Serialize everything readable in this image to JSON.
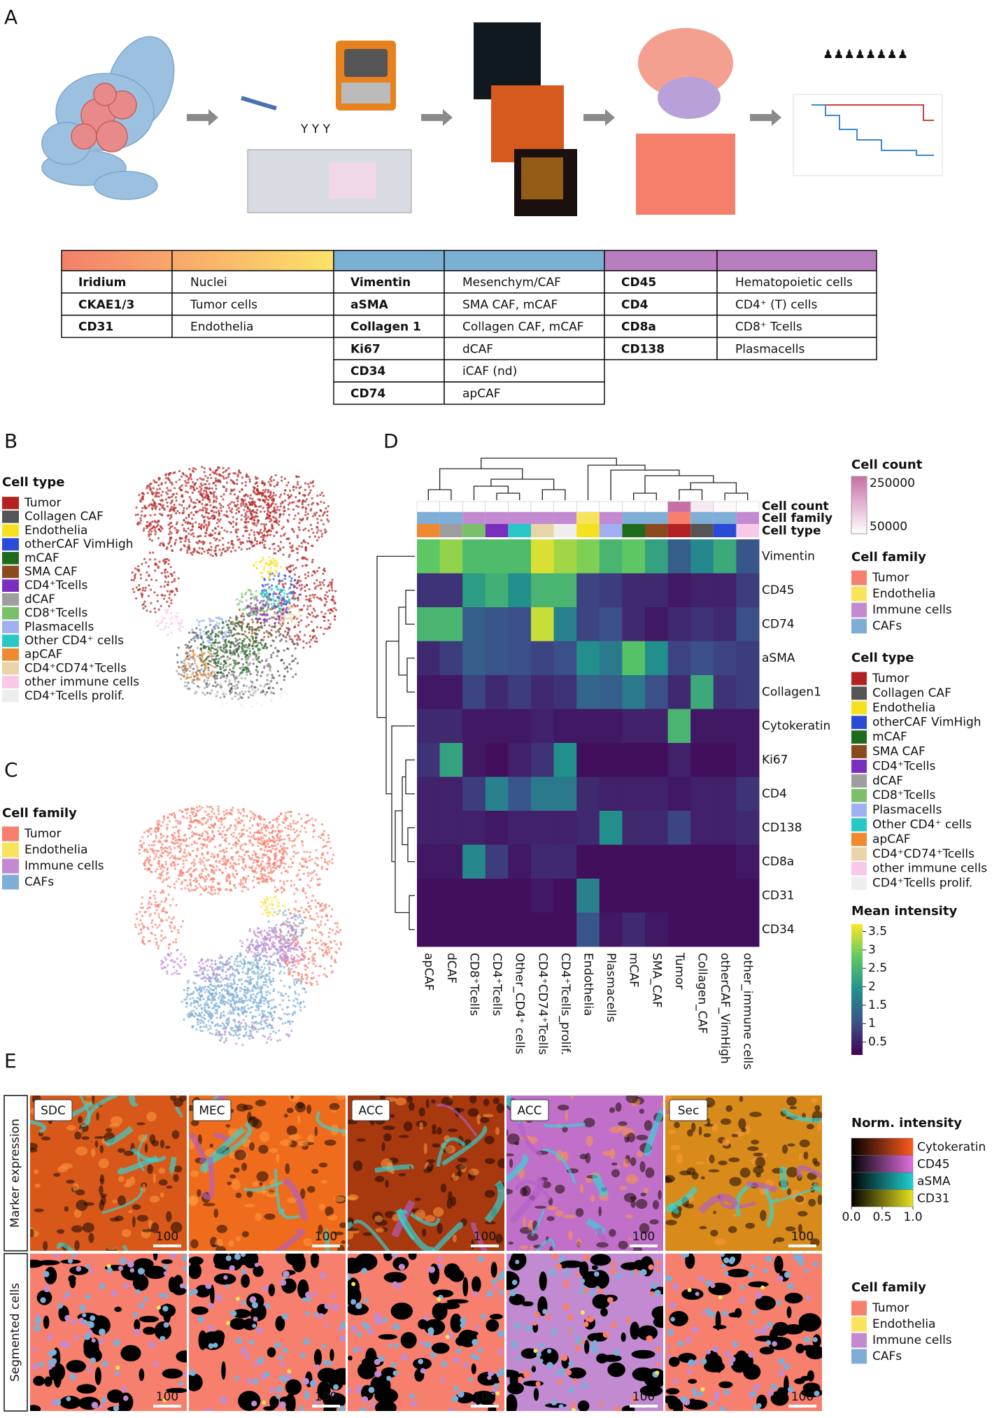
{
  "panel_labels": [
    "A",
    "B",
    "C",
    "D",
    "E"
  ],
  "table": {
    "groups": [
      {
        "color": [
          "#f47f6b",
          "#fde26a"
        ],
        "rows": [
          [
            "Iridium",
            "Nuclei"
          ],
          [
            "CKAE1/3",
            "Tumor cells"
          ],
          [
            "CD31",
            "Endothelia"
          ]
        ]
      },
      {
        "color": [
          "#7bafd4"
        ],
        "rows": [
          [
            "Vimentin",
            "Mesenchym/CAF"
          ],
          [
            "aSMA",
            "SMA CAF, mCAF"
          ],
          [
            "Collagen 1",
            "Collagen CAF, mCAF"
          ],
          [
            "Ki67",
            "dCAF"
          ],
          [
            "CD34",
            "iCAF (nd)"
          ],
          [
            "CD74",
            "apCAF"
          ]
        ]
      },
      {
        "color": [
          "#b87ec0"
        ],
        "rows": [
          [
            "CD45",
            "Hematopoietic cells"
          ],
          [
            "CD4",
            "CD4⁺ (T) cells"
          ],
          [
            "CD8a",
            "CD8⁺ Tcells"
          ],
          [
            "CD138",
            "Plasmacells"
          ]
        ]
      }
    ]
  },
  "tsne_celltype": {
    "title": "Cell type",
    "items": [
      {
        "name": "Tumor",
        "color": "#b22222"
      },
      {
        "name": "Collagen CAF",
        "color": "#555555"
      },
      {
        "name": "Endothelia",
        "color": "#f5e11e"
      },
      {
        "name": "otherCAF VimHigh",
        "color": "#2a4ad8"
      },
      {
        "name": "mCAF",
        "color": "#1e6b1e"
      },
      {
        "name": "SMA CAF",
        "color": "#8b4a1e"
      },
      {
        "name": "CD4⁺Tcells",
        "color": "#7a2ec0"
      },
      {
        "name": "dCAF",
        "color": "#9e9e9e"
      },
      {
        "name": "CD8⁺Tcells",
        "color": "#7ac06a"
      },
      {
        "name": "Plasmacells",
        "color": "#a0b0f0"
      },
      {
        "name": "Other CD4⁺ cells",
        "color": "#28c8c8"
      },
      {
        "name": "apCAF",
        "color": "#f08a30"
      },
      {
        "name": "CD4⁺CD74⁺Tcells",
        "color": "#e8d4a8"
      },
      {
        "name": "other immune cells",
        "color": "#f8c8e8"
      },
      {
        "name": "CD4⁺Tcells prolif.",
        "color": "#eeeeee"
      }
    ]
  },
  "tsne_family": {
    "title": "Cell family",
    "items": [
      {
        "name": "Tumor",
        "color": "#f77f6e"
      },
      {
        "name": "Endothelia",
        "color": "#f8e45a"
      },
      {
        "name": "Immune cells",
        "color": "#c28bd1"
      },
      {
        "name": "CAFs",
        "color": "#7eaed6"
      }
    ]
  },
  "chart_data": {
    "type": "heatmap",
    "rows": [
      "Vimentin",
      "CD45",
      "CD74",
      "aSMA",
      "Collagen1",
      "Cytokeratin",
      "Ki67",
      "CD4",
      "CD138",
      "CD8a",
      "CD31",
      "CD34"
    ],
    "columns": [
      "apCAF",
      "dCAF",
      "CD8⁺Tcells",
      "CD4⁺Tcells",
      "Other_CD4⁺ cells",
      "CD4⁺CD74⁺Tcells",
      "CD4⁺Tcells_prolif.",
      "Endothelia",
      "Plasmacells",
      "mCAF",
      "SMA_CAF",
      "Tumor",
      "Collagen_CAF",
      "otherCAF_VimHigh",
      "other_immune cells"
    ],
    "values": [
      [
        2.8,
        3.1,
        2.6,
        2.6,
        2.6,
        3.5,
        3.2,
        3.0,
        2.5,
        2.8,
        2.2,
        1.2,
        1.8,
        2.3,
        1.1
      ],
      [
        0.7,
        0.7,
        2.1,
        2.4,
        1.9,
        2.5,
        2.5,
        0.9,
        0.8,
        0.6,
        0.6,
        0.4,
        0.5,
        0.5,
        0.8
      ],
      [
        2.5,
        2.5,
        1.2,
        1.1,
        1.0,
        3.4,
        1.7,
        0.9,
        1.0,
        0.6,
        0.4,
        0.6,
        0.7,
        0.6,
        1.0
      ],
      [
        0.6,
        0.8,
        1.2,
        1.1,
        1.0,
        0.9,
        1.0,
        1.9,
        1.6,
        2.7,
        1.9,
        0.9,
        1.0,
        0.9,
        0.8
      ],
      [
        0.4,
        0.4,
        0.9,
        0.6,
        0.8,
        0.6,
        0.7,
        1.3,
        1.2,
        1.6,
        1.0,
        0.6,
        2.3,
        0.7,
        0.8
      ],
      [
        0.6,
        0.6,
        0.4,
        0.4,
        0.4,
        0.5,
        0.4,
        0.4,
        0.4,
        0.5,
        0.5,
        2.5,
        0.4,
        0.4,
        0.4
      ],
      [
        0.7,
        2.2,
        0.4,
        0.3,
        0.5,
        0.7,
        1.9,
        0.3,
        0.3,
        0.3,
        0.3,
        0.5,
        0.3,
        0.3,
        0.4
      ],
      [
        0.5,
        0.5,
        0.8,
        1.7,
        1.1,
        1.6,
        1.6,
        0.6,
        0.5,
        0.5,
        0.5,
        0.4,
        0.5,
        0.5,
        0.7
      ],
      [
        0.5,
        0.5,
        0.5,
        0.4,
        0.5,
        0.5,
        0.5,
        0.6,
        1.9,
        0.6,
        0.6,
        0.9,
        0.5,
        0.5,
        0.6
      ],
      [
        0.4,
        0.4,
        1.8,
        0.8,
        0.4,
        0.6,
        0.6,
        0.3,
        0.3,
        0.3,
        0.3,
        0.3,
        0.3,
        0.3,
        0.4
      ],
      [
        0.3,
        0.3,
        0.3,
        0.3,
        0.3,
        0.4,
        0.3,
        1.7,
        0.3,
        0.3,
        0.3,
        0.3,
        0.3,
        0.3,
        0.3
      ],
      [
        0.3,
        0.3,
        0.3,
        0.3,
        0.3,
        0.3,
        0.3,
        1.1,
        0.4,
        0.6,
        0.4,
        0.3,
        0.3,
        0.3,
        0.3
      ]
    ],
    "colormap": [
      "#440154",
      "#3b528b",
      "#21918c",
      "#5ec962",
      "#fde725"
    ],
    "clim": [
      0.15,
      3.7
    ],
    "colorbar_title": "Mean intensity",
    "colorbar_ticks": [
      0.5,
      1,
      1.5,
      2,
      2.5,
      3,
      3.5
    ],
    "annotations": {
      "labels": [
        "Cell count",
        "Cell family",
        "Cell type"
      ],
      "cell_count": [
        30000,
        25000,
        30000,
        35000,
        30000,
        35000,
        20000,
        40000,
        30000,
        40000,
        45000,
        250000,
        80000,
        60000,
        40000
      ],
      "cell_family": [
        "CAFs",
        "CAFs",
        "Immune cells",
        "Immune cells",
        "Immune cells",
        "Immune cells",
        "Immune cells",
        "Endothelia",
        "Immune cells",
        "CAFs",
        "CAFs",
        "Tumor",
        "CAFs",
        "CAFs",
        "Immune cells"
      ],
      "cell_type": [
        "apCAF",
        "dCAF",
        "CD8⁺Tcells",
        "CD4⁺Tcells",
        "Other CD4⁺ cells",
        "CD4⁺CD74⁺Tcells",
        "CD4⁺Tcells prolif.",
        "Endothelia",
        "Plasmacells",
        "mCAF",
        "SMA CAF",
        "Tumor",
        "Collagen CAF",
        "otherCAF VimHigh",
        "other immune cells"
      ]
    },
    "count_legend": {
      "title": "Cell count",
      "ticks": [
        250000,
        50000
      ],
      "lim": [
        50000,
        250000
      ],
      "colors": [
        "#ffffff",
        "#c76fa6"
      ]
    },
    "family_legend": {
      "title": "Cell family",
      "items": [
        {
          "name": "Tumor",
          "color": "#f77f6e"
        },
        {
          "name": "Endothelia",
          "color": "#f8e45a"
        },
        {
          "name": "Immune cells",
          "color": "#c28bd1"
        },
        {
          "name": "CAFs",
          "color": "#7eaed6"
        }
      ]
    },
    "type_legend": {
      "title": "Cell type",
      "items": [
        {
          "name": "Tumor",
          "color": "#b22222"
        },
        {
          "name": "Collagen CAF",
          "color": "#555555"
        },
        {
          "name": "Endothelia",
          "color": "#f5e11e"
        },
        {
          "name": "otherCAF VimHigh",
          "color": "#2a4ad8"
        },
        {
          "name": "mCAF",
          "color": "#1e6b1e"
        },
        {
          "name": "SMA CAF",
          "color": "#8b4a1e"
        },
        {
          "name": "CD4⁺Tcells",
          "color": "#7a2ec0"
        },
        {
          "name": "dCAF",
          "color": "#9e9e9e"
        },
        {
          "name": "CD8⁺Tcells",
          "color": "#7ac06a"
        },
        {
          "name": "Plasmacells",
          "color": "#a0b0f0"
        },
        {
          "name": "Other CD4⁺ cells",
          "color": "#28c8c8"
        },
        {
          "name": "apCAF",
          "color": "#f08a30"
        },
        {
          "name": "CD4⁺CD74⁺Tcells",
          "color": "#e8d4a8"
        },
        {
          "name": "other immune cells",
          "color": "#f8c8e8"
        },
        {
          "name": "CD4⁺Tcells prolif.",
          "color": "#eeeeee"
        }
      ]
    }
  },
  "panel_e": {
    "row_labels": [
      "Marker expression",
      "Segmented cells"
    ],
    "columns": [
      "SDC",
      "MEC",
      "ACC",
      "ACC",
      "Sec"
    ],
    "scale_bar": 100,
    "intensity_legend": {
      "title": "Norm. intensity",
      "markers": [
        {
          "name": "Cytokeratin",
          "color": "#ff5a1e"
        },
        {
          "name": "CD45",
          "color": "#e070e0"
        },
        {
          "name": "aSMA",
          "color": "#20d0d0"
        },
        {
          "name": "CD31",
          "color": "#e8e020"
        }
      ],
      "ticks": [
        {
          "value": 0,
          "label": "0.0"
        },
        {
          "value": 0.5,
          "label": "0.5"
        },
        {
          "value": 1,
          "label": "1.0"
        }
      ]
    },
    "family_legend": {
      "title": "Cell family",
      "items": [
        {
          "name": "Tumor",
          "color": "#f77f6e"
        },
        {
          "name": "Endothelia",
          "color": "#f8e45a"
        },
        {
          "name": "Immune cells",
          "color": "#c28bd1"
        },
        {
          "name": "CAFs",
          "color": "#7eaed6"
        }
      ]
    }
  }
}
